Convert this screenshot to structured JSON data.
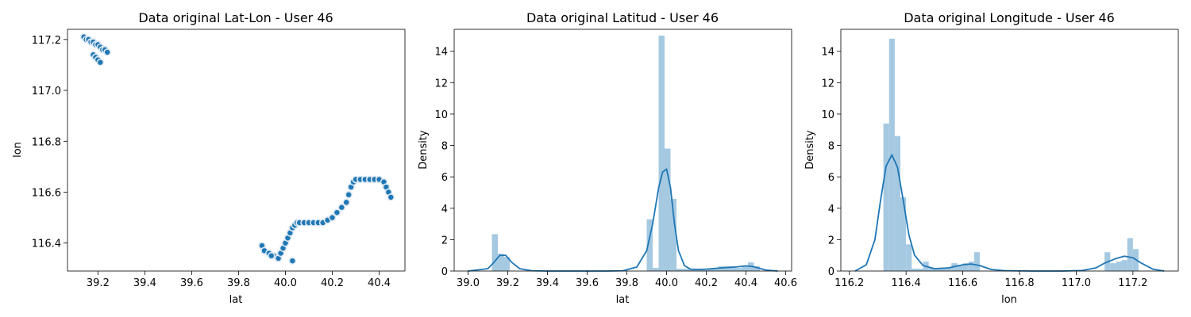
{
  "chart_data": [
    {
      "type": "scatter",
      "title": "Data original Lat-Lon - User 46",
      "xlabel": "lat",
      "ylabel": "lon",
      "xlim": [
        39.07,
        40.51
      ],
      "ylim": [
        116.29,
        117.24
      ],
      "xticks": [
        "39.2",
        "39.4",
        "39.6",
        "39.8",
        "40.0",
        "40.2",
        "40.4"
      ],
      "yticks": [
        "116.4",
        "116.6",
        "116.8",
        "117.0",
        "117.2"
      ],
      "color": "#1f77b4",
      "edge_color": "#dce8f3",
      "series": [
        {
          "x": [
            39.14,
            39.15,
            39.16,
            39.17,
            39.18,
            39.19,
            39.2,
            39.21,
            39.22,
            39.23,
            39.24,
            39.18,
            39.19,
            39.2,
            39.21,
            39.9,
            39.91,
            39.93,
            39.95,
            39.97,
            39.98,
            39.99,
            40.0,
            40.01,
            40.02,
            40.03,
            40.04,
            40.05,
            40.06,
            40.08,
            40.1,
            40.12,
            40.14,
            40.16,
            40.18,
            40.2,
            40.22,
            40.24,
            40.26,
            40.27,
            40.28,
            40.29,
            40.3,
            40.32,
            40.34,
            40.36,
            40.38,
            40.4,
            40.42,
            40.43,
            40.44,
            40.45,
            39.94,
            40.03
          ],
          "y": [
            117.21,
            117.2,
            117.2,
            117.19,
            117.19,
            117.18,
            117.18,
            117.17,
            117.16,
            117.16,
            117.15,
            117.14,
            117.13,
            117.12,
            117.11,
            116.39,
            116.37,
            116.36,
            116.35,
            116.34,
            116.36,
            116.38,
            116.4,
            116.42,
            116.44,
            116.46,
            116.47,
            116.48,
            116.48,
            116.48,
            116.48,
            116.48,
            116.48,
            116.48,
            116.49,
            116.5,
            116.52,
            116.54,
            116.56,
            116.59,
            116.62,
            116.64,
            116.65,
            116.65,
            116.65,
            116.65,
            116.65,
            116.65,
            116.64,
            116.62,
            116.6,
            116.58,
            116.35,
            116.33
          ]
        }
      ]
    },
    {
      "type": "bar",
      "title": "Data original Latitud - User 46",
      "xlabel": "lat",
      "ylabel": "Density",
      "xlim": [
        38.93,
        40.63
      ],
      "ylim": [
        0,
        15.4
      ],
      "xticks": [
        "39.0",
        "39.2",
        "39.4",
        "39.6",
        "39.8",
        "40.0",
        "40.2",
        "40.4",
        "40.6"
      ],
      "yticks": [
        "0",
        "2",
        "4",
        "6",
        "8",
        "10",
        "12",
        "14"
      ],
      "bar_color": "#a6c9e2",
      "kde_color": "#1f77b4",
      "bin_edges": [
        39.12,
        39.15,
        39.18,
        39.21,
        39.24,
        39.27,
        39.3,
        39.33,
        39.36,
        39.39,
        39.42,
        39.45,
        39.48,
        39.51,
        39.54,
        39.57,
        39.6,
        39.63,
        39.66,
        39.69,
        39.72,
        39.75,
        39.78,
        39.81,
        39.84,
        39.87,
        39.9,
        39.93,
        39.96,
        39.99,
        40.02,
        40.05,
        40.08,
        40.11,
        40.14,
        40.17,
        40.2,
        40.23,
        40.26,
        40.29,
        40.32,
        40.35,
        40.38,
        40.41,
        40.44,
        40.47
      ],
      "values": [
        2.35,
        1.1,
        0.9,
        0,
        0,
        0,
        0,
        0,
        0,
        0,
        0,
        0,
        0,
        0,
        0,
        0,
        0,
        0,
        0,
        0,
        0,
        0,
        0,
        0,
        0,
        0,
        3.3,
        0.2,
        15.0,
        7.8,
        4.6,
        0.15,
        0.15,
        0.15,
        0.1,
        0.1,
        0.15,
        0.2,
        0.3,
        0.3,
        0.3,
        0.2,
        0.3,
        0.55,
        0.3
      ],
      "kde": {
        "x": [
          39.0,
          39.1,
          39.13,
          39.16,
          39.19,
          39.22,
          39.26,
          39.32,
          39.4,
          39.5,
          39.6,
          39.7,
          39.78,
          39.85,
          39.9,
          39.93,
          39.96,
          39.98,
          40.0,
          40.02,
          40.04,
          40.06,
          40.09,
          40.12,
          40.16,
          40.2,
          40.26,
          40.3,
          40.35,
          40.4,
          40.43,
          40.46,
          40.5,
          40.56
        ],
        "y": [
          0.0,
          0.15,
          0.55,
          1.0,
          1.0,
          0.55,
          0.15,
          0.02,
          0.0,
          0.0,
          0.0,
          0.0,
          0.02,
          0.25,
          1.3,
          3.0,
          5.3,
          6.3,
          6.5,
          5.3,
          3.0,
          1.3,
          0.35,
          0.12,
          0.1,
          0.12,
          0.18,
          0.22,
          0.26,
          0.33,
          0.3,
          0.2,
          0.06,
          0.0
        ]
      }
    },
    {
      "type": "bar",
      "title": "Data original Longitude - User 46",
      "xlabel": "lon",
      "ylabel": "Density",
      "xlim": [
        116.17,
        117.36
      ],
      "ylim": [
        0,
        15.4
      ],
      "xticks": [
        "116.2",
        "116.4",
        "116.6",
        "116.8",
        "117.0",
        "117.2"
      ],
      "yticks": [
        "0",
        "2",
        "4",
        "6",
        "8",
        "10",
        "12",
        "14"
      ],
      "bar_color": "#a6c9e2",
      "kde_color": "#1f77b4",
      "bin_edges": [
        116.32,
        116.34,
        116.36,
        116.38,
        116.4,
        116.42,
        116.44,
        116.46,
        116.48,
        116.5,
        116.52,
        116.54,
        116.56,
        116.58,
        116.6,
        116.62,
        116.64,
        116.66,
        116.68,
        116.7,
        116.72,
        116.74,
        116.76,
        116.78,
        116.8,
        116.82,
        116.84,
        116.86,
        116.88,
        116.9,
        116.92,
        116.94,
        116.96,
        116.98,
        117.0,
        117.02,
        117.04,
        117.06,
        117.08,
        117.1,
        117.12,
        117.14,
        117.16,
        117.18,
        117.2,
        117.22
      ],
      "values": [
        9.4,
        14.8,
        8.6,
        4.7,
        1.7,
        0.15,
        0.15,
        0.6,
        0.2,
        0.2,
        0.2,
        0.2,
        0.5,
        0.4,
        0.5,
        0.6,
        1.2,
        0,
        0,
        0,
        0,
        0,
        0,
        0,
        0,
        0,
        0,
        0,
        0,
        0,
        0,
        0,
        0,
        0,
        0,
        0,
        0,
        0,
        0,
        1.2,
        0.5,
        0.6,
        0.7,
        2.1,
        1.4
      ],
      "kde": {
        "x": [
          116.22,
          116.26,
          116.29,
          116.31,
          116.33,
          116.35,
          116.37,
          116.39,
          116.41,
          116.43,
          116.46,
          116.5,
          116.55,
          116.6,
          116.63,
          116.66,
          116.7,
          116.75,
          116.85,
          116.95,
          117.02,
          117.07,
          117.1,
          117.14,
          117.17,
          117.2,
          117.23,
          117.27,
          117.31
        ],
        "y": [
          0.0,
          0.4,
          2.0,
          4.5,
          6.7,
          7.4,
          6.6,
          4.5,
          2.3,
          1.0,
          0.35,
          0.15,
          0.2,
          0.4,
          0.45,
          0.35,
          0.1,
          0.02,
          0.0,
          0.0,
          0.03,
          0.2,
          0.5,
          0.8,
          0.95,
          0.85,
          0.5,
          0.12,
          0.0
        ]
      }
    }
  ]
}
